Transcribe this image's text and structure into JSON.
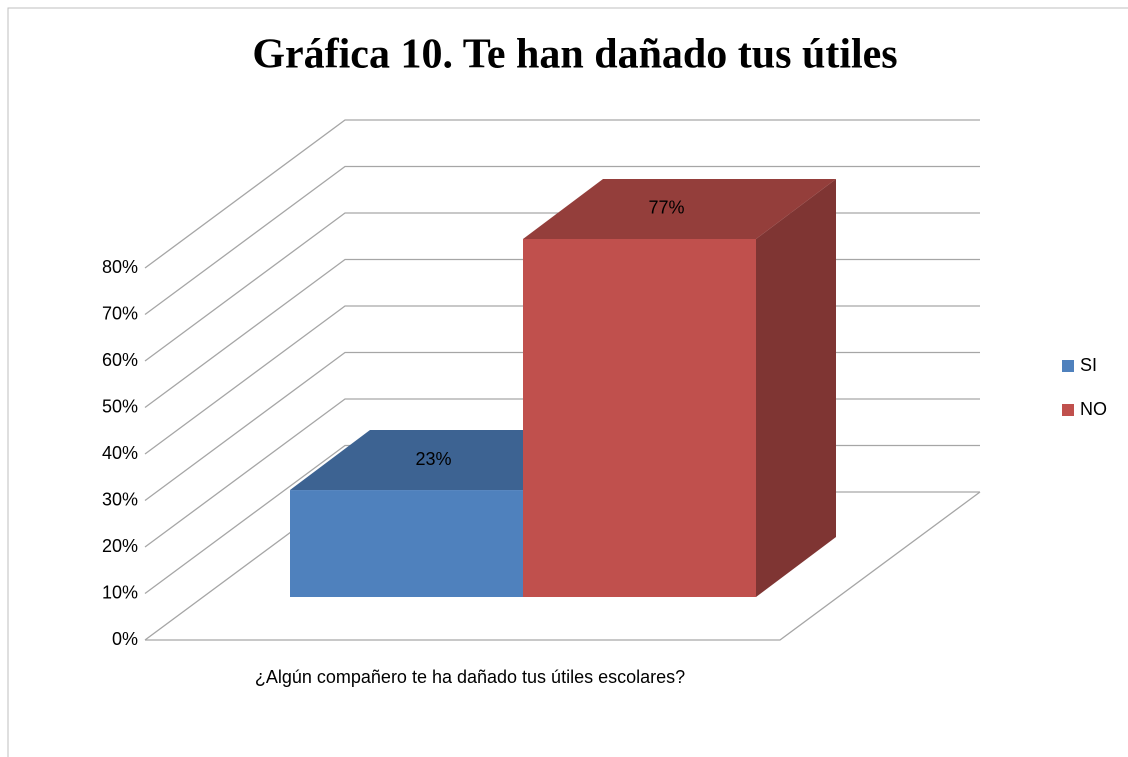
{
  "chart_data": {
    "type": "bar3d",
    "title": "Gráfica 10. Te han dañado tus útiles",
    "categories": [
      "¿Algún compañero te ha dañado tus útiles escolares?"
    ],
    "series": [
      {
        "name": "SI",
        "color": "#4f81bd",
        "values": [
          23
        ],
        "value_labels": [
          "23%"
        ]
      },
      {
        "name": "NO",
        "color": "#c0504d",
        "values": [
          77
        ],
        "value_labels": [
          "77%"
        ]
      }
    ],
    "ylim": [
      0,
      80
    ],
    "yticks": [
      {
        "value": 0,
        "label": "0%"
      },
      {
        "value": 10,
        "label": "10%"
      },
      {
        "value": 20,
        "label": "20%"
      },
      {
        "value": 30,
        "label": "30%"
      },
      {
        "value": 40,
        "label": "40%"
      },
      {
        "value": 50,
        "label": "50%"
      },
      {
        "value": 60,
        "label": "60%"
      },
      {
        "value": 70,
        "label": "70%"
      },
      {
        "value": 80,
        "label": "80%"
      }
    ],
    "grid": true,
    "legend": "right"
  }
}
